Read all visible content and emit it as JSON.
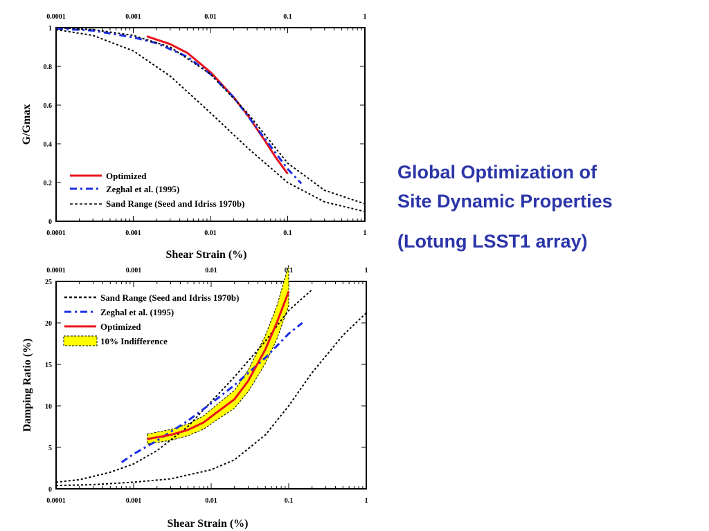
{
  "title": {
    "line1": "Global Optimization of",
    "line2": "Site Dynamic Properties",
    "subtitle": "(Lotung LSST1 array)",
    "color": "#2b35a8"
  },
  "chart_data": [
    {
      "type": "line",
      "xlabel": "Shear Strain (%)",
      "ylabel": "G/Gmax",
      "xscale": "log",
      "xlim": [
        0.0001,
        1
      ],
      "ylim": [
        0,
        1
      ],
      "x_ticks": [
        "0.0001",
        "0.001",
        "0.01",
        "0.1",
        "1"
      ],
      "y_ticks": [
        "0",
        "0.2",
        "0.4",
        "0.6",
        "0.8",
        "1"
      ],
      "legend_position": "bottom-left",
      "legend": [
        "Optimized",
        "Zeghal  et al. (1995)",
        "Sand Range (Seed and Idriss 1970b)"
      ],
      "series": [
        {
          "name": "Optimized",
          "color": "#e8141c",
          "style": "solid",
          "x": [
            0.0015,
            0.003,
            0.005,
            0.01,
            0.02,
            0.03,
            0.05,
            0.07,
            0.1
          ],
          "y": [
            0.955,
            0.915,
            0.87,
            0.77,
            0.64,
            0.55,
            0.42,
            0.33,
            0.245
          ]
        },
        {
          "name": "Zeghal  et al. (1995)",
          "color": "#1a2ee6",
          "style": "dashdot",
          "x": [
            0.0001,
            0.0003,
            0.001,
            0.002,
            0.005,
            0.01,
            0.02,
            0.05,
            0.1,
            0.15
          ],
          "y": [
            0.995,
            0.985,
            0.95,
            0.92,
            0.85,
            0.76,
            0.64,
            0.43,
            0.27,
            0.195
          ]
        },
        {
          "name": "Sand Range (Seed and Idriss 1970b)",
          "color": "#000000",
          "style": "dotted",
          "x": [
            0.0001,
            0.0003,
            0.001,
            0.003,
            0.01,
            0.03,
            0.1,
            0.3,
            1
          ],
          "y": [
            1.0,
            0.99,
            0.96,
            0.9,
            0.76,
            0.56,
            0.3,
            0.16,
            0.09
          ]
        },
        {
          "name": "",
          "color": "#000000",
          "style": "dotted",
          "x": [
            0.0001,
            0.0003,
            0.001,
            0.003,
            0.01,
            0.03,
            0.1,
            0.3,
            1
          ],
          "y": [
            0.99,
            0.96,
            0.88,
            0.75,
            0.56,
            0.38,
            0.2,
            0.1,
            0.05
          ]
        }
      ]
    },
    {
      "type": "line",
      "xlabel": "Shear Strain (%)",
      "ylabel": "Damping Ratio (%)",
      "xscale": "log",
      "xlim": [
        0.0001,
        1
      ],
      "ylim": [
        0,
        25
      ],
      "x_ticks": [
        "0.0001",
        "0.001",
        "0.01",
        "0.1",
        "1"
      ],
      "y_ticks": [
        "0",
        "5",
        "10",
        "15",
        "20",
        "25"
      ],
      "legend_position": "top-left",
      "legend": [
        "Sand Range (Seed and Idriss 1970b)",
        "Zeghal et al. (1995)",
        "Optimized",
        "10% Indifference"
      ],
      "series": [
        {
          "name": "Sand Range (Seed and Idriss 1970b)",
          "color": "#000000",
          "style": "dotted",
          "x": [
            0.0001,
            0.0002,
            0.0005,
            0.001,
            0.002,
            0.005,
            0.01,
            0.02,
            0.05,
            0.1,
            0.2
          ],
          "y": [
            0.8,
            1.1,
            2.0,
            3.0,
            4.6,
            7.5,
            10.5,
            13.5,
            17.8,
            21.5,
            24.0
          ]
        },
        {
          "name": "",
          "color": "#000000",
          "style": "dotted",
          "x": [
            0.0001,
            0.0003,
            0.001,
            0.003,
            0.01,
            0.02,
            0.05,
            0.1,
            0.2,
            0.5,
            1
          ],
          "y": [
            0.4,
            0.5,
            0.8,
            1.2,
            2.3,
            3.5,
            6.5,
            10.0,
            14.0,
            18.5,
            21.2
          ]
        },
        {
          "name": "Zeghal et al. (1995)",
          "color": "#1a2ee6",
          "style": "dashdot",
          "x": [
            0.0007,
            0.001,
            0.002,
            0.005,
            0.01,
            0.02,
            0.05,
            0.1,
            0.15
          ],
          "y": [
            3.2,
            4.2,
            5.8,
            8.2,
            10.3,
            12.5,
            15.8,
            18.7,
            20.0
          ]
        },
        {
          "name": "Optimized",
          "color": "#e8141c",
          "style": "solid",
          "x": [
            0.0015,
            0.003,
            0.005,
            0.008,
            0.01,
            0.02,
            0.03,
            0.05,
            0.07,
            0.1
          ],
          "y": [
            6.0,
            6.5,
            7.1,
            8.0,
            8.7,
            10.8,
            13.0,
            16.8,
            20.0,
            23.8
          ]
        },
        {
          "name": "10% Indifference",
          "color": "#ffff00",
          "style": "band",
          "x": [
            0.0015,
            0.003,
            0.005,
            0.008,
            0.01,
            0.02,
            0.03,
            0.05,
            0.07,
            0.1
          ],
          "y": [
            6.0,
            6.5,
            7.1,
            8.0,
            8.7,
            10.8,
            13.0,
            16.8,
            20.0,
            24.5
          ],
          "band_fraction": 0.1
        }
      ]
    }
  ]
}
